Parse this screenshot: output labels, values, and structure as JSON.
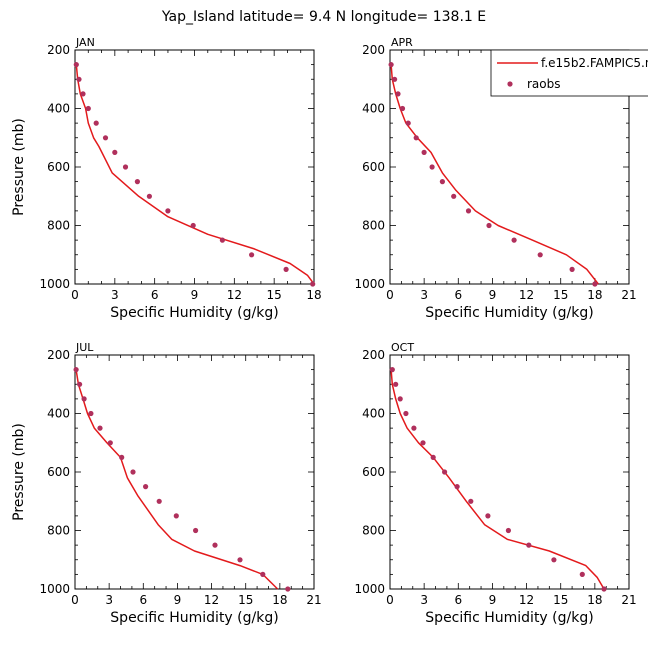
{
  "figure_title": "Yap_Island  latitude= 9.4 N longitude= 138.1 E",
  "colors": {
    "model": "#e31a1c",
    "obs": "#b0305c",
    "axis": "#000000"
  },
  "legend": {
    "items": [
      {
        "label": "f.e15b2.FAMPIC5.n",
        "marker": "line"
      },
      {
        "label": "raobs",
        "marker": "dot"
      }
    ]
  },
  "chart_data": [
    {
      "type": "line",
      "title": "JAN",
      "xlabel": "Specific Humidity (g/kg)",
      "ylabel": "Pressure (mb)",
      "xlim": [
        0,
        18
      ],
      "xticks": [
        0,
        3,
        6,
        9,
        12,
        15,
        18
      ],
      "ylim": [
        1000,
        200
      ],
      "yticks": [
        200,
        400,
        600,
        800,
        1000
      ],
      "y_inverted": true,
      "series": [
        {
          "name": "f.e15b2.FAMPIC5.n",
          "style": "line",
          "x": [
            0.1,
            0.2,
            0.4,
            0.8,
            1.0,
            1.4,
            1.8,
            2.8,
            4.8,
            7.0,
            10.0,
            13.5,
            16.2,
            17.5,
            18.0
          ],
          "y": [
            250,
            300,
            350,
            400,
            450,
            500,
            530,
            620,
            700,
            770,
            830,
            880,
            930,
            970,
            1000
          ]
        },
        {
          "name": "raobs",
          "style": "dot",
          "x": [
            0.1,
            0.3,
            0.6,
            1.0,
            1.6,
            2.3,
            3.0,
            3.8,
            4.7,
            5.6,
            7.0,
            8.9,
            11.1,
            13.3,
            15.9,
            17.9
          ],
          "y": [
            250,
            300,
            350,
            400,
            450,
            500,
            550,
            600,
            650,
            700,
            750,
            800,
            850,
            900,
            950,
            1000
          ]
        }
      ]
    },
    {
      "type": "line",
      "title": "APR",
      "xlabel": "Specific Humidity (g/kg)",
      "ylabel": "",
      "xlim": [
        0,
        21
      ],
      "xticks": [
        0,
        3,
        6,
        9,
        12,
        15,
        18,
        21
      ],
      "ylim": [
        1000,
        200
      ],
      "yticks": [
        200,
        400,
        600,
        800,
        1000
      ],
      "y_inverted": true,
      "series": [
        {
          "name": "f.e15b2.FAMPIC5.n",
          "style": "line",
          "x": [
            0.1,
            0.2,
            0.5,
            0.9,
            1.4,
            2.4,
            3.6,
            4.6,
            5.8,
            7.5,
            9.5,
            12.5,
            15.5,
            17.3,
            18.3
          ],
          "y": [
            250,
            300,
            350,
            400,
            450,
            500,
            550,
            620,
            680,
            750,
            800,
            850,
            900,
            950,
            1000
          ]
        },
        {
          "name": "raobs",
          "style": "dot",
          "x": [
            0.1,
            0.4,
            0.7,
            1.1,
            1.6,
            2.3,
            3.0,
            3.7,
            4.6,
            5.6,
            6.9,
            8.7,
            10.9,
            13.2,
            16.0,
            18.0
          ],
          "y": [
            250,
            300,
            350,
            400,
            450,
            500,
            550,
            600,
            650,
            700,
            750,
            800,
            850,
            900,
            950,
            1000
          ]
        }
      ]
    },
    {
      "type": "line",
      "title": "JUL",
      "xlabel": "Specific Humidity (g/kg)",
      "ylabel": "Pressure (mb)",
      "xlim": [
        0,
        21
      ],
      "xticks": [
        0,
        3,
        6,
        9,
        12,
        15,
        18,
        21
      ],
      "ylim": [
        1000,
        200
      ],
      "yticks": [
        200,
        400,
        600,
        800,
        1000
      ],
      "y_inverted": true,
      "series": [
        {
          "name": "f.e15b2.FAMPIC5.n",
          "style": "line",
          "x": [
            0.1,
            0.3,
            0.7,
            1.1,
            1.7,
            2.8,
            4.0,
            4.6,
            5.5,
            7.3,
            8.5,
            10.5,
            14.5,
            16.5,
            17.8
          ],
          "y": [
            250,
            300,
            350,
            400,
            450,
            500,
            550,
            620,
            680,
            780,
            830,
            870,
            920,
            950,
            1000
          ]
        },
        {
          "name": "raobs",
          "style": "dot",
          "x": [
            0.1,
            0.4,
            0.8,
            1.4,
            2.2,
            3.1,
            4.1,
            5.1,
            6.2,
            7.4,
            8.9,
            10.6,
            12.3,
            14.5,
            16.5,
            18.7
          ],
          "y": [
            250,
            300,
            350,
            400,
            450,
            500,
            550,
            600,
            650,
            700,
            750,
            800,
            850,
            900,
            950,
            1000
          ]
        }
      ]
    },
    {
      "type": "line",
      "title": "OCT",
      "xlabel": "Specific Humidity (g/kg)",
      "ylabel": "",
      "xlim": [
        0,
        21
      ],
      "xticks": [
        0,
        3,
        6,
        9,
        12,
        15,
        18,
        21
      ],
      "ylim": [
        1000,
        200
      ],
      "yticks": [
        200,
        400,
        600,
        800,
        1000
      ],
      "y_inverted": true,
      "series": [
        {
          "name": "f.e15b2.FAMPIC5.n",
          "style": "line",
          "x": [
            0.1,
            0.2,
            0.5,
            0.9,
            1.5,
            2.5,
            3.8,
            5.2,
            6.7,
            8.3,
            10.3,
            14.0,
            17.2,
            18.2,
            18.8
          ],
          "y": [
            250,
            300,
            350,
            400,
            450,
            500,
            550,
            620,
            700,
            780,
            830,
            870,
            920,
            960,
            1000
          ]
        },
        {
          "name": "raobs",
          "style": "dot",
          "x": [
            0.2,
            0.5,
            0.9,
            1.4,
            2.1,
            2.9,
            3.8,
            4.8,
            5.9,
            7.1,
            8.6,
            10.4,
            12.2,
            14.4,
            16.9,
            18.8
          ],
          "y": [
            250,
            300,
            350,
            400,
            450,
            500,
            550,
            600,
            650,
            700,
            750,
            800,
            850,
            900,
            950,
            1000
          ]
        }
      ]
    }
  ]
}
